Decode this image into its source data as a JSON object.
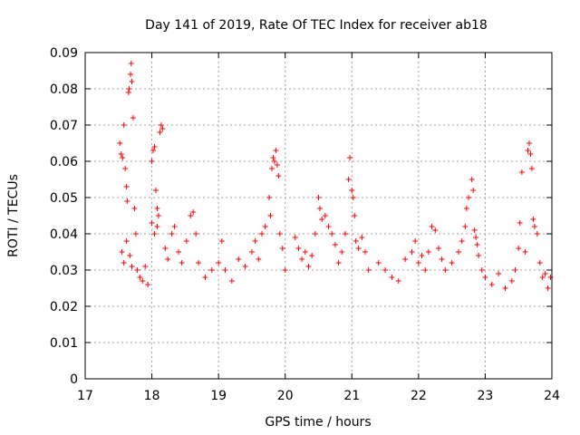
{
  "chart_data": {
    "type": "scatter",
    "title": "Day 141 of 2019, Rate Of TEC Index for receiver ab18",
    "xlabel": "GPS time / hours",
    "ylabel": "ROTI / TECUs",
    "xlim": [
      17,
      24
    ],
    "ylim": [
      0,
      0.09
    ],
    "x_ticks": [
      17,
      18,
      19,
      20,
      21,
      22,
      23,
      24
    ],
    "x_tick_labels": [
      "17",
      "18",
      "19",
      "20",
      "21",
      "22",
      "23",
      "24"
    ],
    "y_ticks": [
      0,
      0.01,
      0.02,
      0.03,
      0.04,
      0.05,
      0.06,
      0.07,
      0.08,
      0.09
    ],
    "y_tick_labels": [
      "0",
      "0.01",
      "0.02",
      "0.03",
      "0.04",
      "0.05",
      "0.06",
      "0.07",
      "0.08",
      "0.09"
    ],
    "grid": true,
    "marker": "+",
    "color": "#ff0000",
    "series": [
      {
        "name": "ROTI",
        "points": [
          [
            17.52,
            0.065
          ],
          [
            17.54,
            0.062
          ],
          [
            17.56,
            0.061
          ],
          [
            17.58,
            0.07
          ],
          [
            17.6,
            0.058
          ],
          [
            17.62,
            0.053
          ],
          [
            17.63,
            0.049
          ],
          [
            17.65,
            0.079
          ],
          [
            17.66,
            0.08
          ],
          [
            17.68,
            0.084
          ],
          [
            17.69,
            0.087
          ],
          [
            17.7,
            0.082
          ],
          [
            17.72,
            0.072
          ],
          [
            17.74,
            0.047
          ],
          [
            17.76,
            0.04
          ],
          [
            17.55,
            0.035
          ],
          [
            17.58,
            0.032
          ],
          [
            17.62,
            0.038
          ],
          [
            17.67,
            0.034
          ],
          [
            17.7,
            0.031
          ],
          [
            17.78,
            0.03
          ],
          [
            17.82,
            0.028
          ],
          [
            17.86,
            0.027
          ],
          [
            17.9,
            0.031
          ],
          [
            17.94,
            0.026
          ],
          [
            18.0,
            0.06
          ],
          [
            18.02,
            0.063
          ],
          [
            18.04,
            0.064
          ],
          [
            18.06,
            0.052
          ],
          [
            18.08,
            0.047
          ],
          [
            18.1,
            0.045
          ],
          [
            18.12,
            0.068
          ],
          [
            18.14,
            0.07
          ],
          [
            18.16,
            0.069
          ],
          [
            18.0,
            0.043
          ],
          [
            18.04,
            0.04
          ],
          [
            18.08,
            0.042
          ],
          [
            18.2,
            0.036
          ],
          [
            18.24,
            0.033
          ],
          [
            18.3,
            0.04
          ],
          [
            18.34,
            0.042
          ],
          [
            18.4,
            0.035
          ],
          [
            18.45,
            0.032
          ],
          [
            18.52,
            0.038
          ],
          [
            18.58,
            0.045
          ],
          [
            18.62,
            0.046
          ],
          [
            18.66,
            0.04
          ],
          [
            18.7,
            0.032
          ],
          [
            18.8,
            0.028
          ],
          [
            18.9,
            0.03
          ],
          [
            19.0,
            0.032
          ],
          [
            19.05,
            0.038
          ],
          [
            19.1,
            0.03
          ],
          [
            19.2,
            0.027
          ],
          [
            19.3,
            0.033
          ],
          [
            19.4,
            0.031
          ],
          [
            19.5,
            0.035
          ],
          [
            19.55,
            0.038
          ],
          [
            19.6,
            0.033
          ],
          [
            19.65,
            0.04
          ],
          [
            19.7,
            0.042
          ],
          [
            19.76,
            0.05
          ],
          [
            19.8,
            0.058
          ],
          [
            19.82,
            0.061
          ],
          [
            19.84,
            0.06
          ],
          [
            19.86,
            0.063
          ],
          [
            19.88,
            0.059
          ],
          [
            19.9,
            0.056
          ],
          [
            19.78,
            0.045
          ],
          [
            19.92,
            0.04
          ],
          [
            19.96,
            0.036
          ],
          [
            20.0,
            0.03
          ],
          [
            20.15,
            0.039
          ],
          [
            20.2,
            0.036
          ],
          [
            20.25,
            0.033
          ],
          [
            20.3,
            0.035
          ],
          [
            20.35,
            0.031
          ],
          [
            20.4,
            0.034
          ],
          [
            20.45,
            0.04
          ],
          [
            20.5,
            0.05
          ],
          [
            20.52,
            0.047
          ],
          [
            20.55,
            0.044
          ],
          [
            20.6,
            0.045
          ],
          [
            20.65,
            0.042
          ],
          [
            20.7,
            0.04
          ],
          [
            20.75,
            0.037
          ],
          [
            20.8,
            0.032
          ],
          [
            20.85,
            0.035
          ],
          [
            20.9,
            0.04
          ],
          [
            20.95,
            0.055
          ],
          [
            20.97,
            0.061
          ],
          [
            21.0,
            0.052
          ],
          [
            21.02,
            0.05
          ],
          [
            21.04,
            0.045
          ],
          [
            21.06,
            0.038
          ],
          [
            21.1,
            0.036
          ],
          [
            21.15,
            0.039
          ],
          [
            21.2,
            0.035
          ],
          [
            21.25,
            0.03
          ],
          [
            21.4,
            0.032
          ],
          [
            21.5,
            0.03
          ],
          [
            21.6,
            0.028
          ],
          [
            21.7,
            0.027
          ],
          [
            21.8,
            0.033
          ],
          [
            21.9,
            0.035
          ],
          [
            21.95,
            0.038
          ],
          [
            22.0,
            0.032
          ],
          [
            22.05,
            0.034
          ],
          [
            22.1,
            0.03
          ],
          [
            22.15,
            0.035
          ],
          [
            22.2,
            0.042
          ],
          [
            22.25,
            0.041
          ],
          [
            22.3,
            0.036
          ],
          [
            22.35,
            0.033
          ],
          [
            22.4,
            0.03
          ],
          [
            22.5,
            0.032
          ],
          [
            22.6,
            0.035
          ],
          [
            22.65,
            0.038
          ],
          [
            22.7,
            0.042
          ],
          [
            22.72,
            0.047
          ],
          [
            22.75,
            0.05
          ],
          [
            22.8,
            0.055
          ],
          [
            22.82,
            0.052
          ],
          [
            22.84,
            0.041
          ],
          [
            22.86,
            0.039
          ],
          [
            22.88,
            0.037
          ],
          [
            22.9,
            0.034
          ],
          [
            22.95,
            0.03
          ],
          [
            23.0,
            0.028
          ],
          [
            23.1,
            0.026
          ],
          [
            23.2,
            0.029
          ],
          [
            23.3,
            0.025
          ],
          [
            23.4,
            0.027
          ],
          [
            23.45,
            0.03
          ],
          [
            23.5,
            0.036
          ],
          [
            23.52,
            0.043
          ],
          [
            23.55,
            0.057
          ],
          [
            23.6,
            0.035
          ],
          [
            23.64,
            0.063
          ],
          [
            23.66,
            0.065
          ],
          [
            23.68,
            0.062
          ],
          [
            23.7,
            0.058
          ],
          [
            23.72,
            0.044
          ],
          [
            23.74,
            0.042
          ],
          [
            23.78,
            0.04
          ],
          [
            23.82,
            0.032
          ],
          [
            23.86,
            0.028
          ],
          [
            23.9,
            0.029
          ],
          [
            23.94,
            0.025
          ],
          [
            23.98,
            0.028
          ]
        ]
      }
    ]
  }
}
